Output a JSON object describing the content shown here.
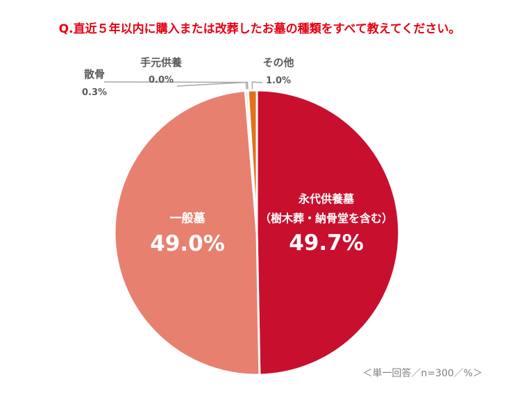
{
  "title": "Q.直近５年以内に購入または改葬したお墓の種類をすべて教えてください。",
  "note": "＜単一回答／n=300／%＞",
  "colors": {
    "title": "#e60012",
    "outer_label": "#595959",
    "inner_label": "#ffffff",
    "leader": "#a6a6a6",
    "note": "#7f7f7f"
  },
  "chart_data": {
    "type": "pie",
    "unit": "%",
    "n": 300,
    "slices": [
      {
        "name_lines": [
          "永代供養墓",
          "（樹木葬・納骨堂を含む）"
        ],
        "value": 49.7,
        "value_label": "49.7%",
        "color": "#c8102e",
        "label_position": "inside"
      },
      {
        "name_lines": [
          "一般墓"
        ],
        "value": 49.0,
        "value_label": "49.0%",
        "color": "#e88070",
        "label_position": "inside"
      },
      {
        "name_lines": [
          "散骨"
        ],
        "value": 0.3,
        "value_label": "0.3%",
        "color": "#c6c6c6",
        "label_position": "outside"
      },
      {
        "name_lines": [
          "手元供養"
        ],
        "value": 0.0,
        "value_label": "0.0%",
        "color": "#bfbfbf",
        "label_position": "outside"
      },
      {
        "name_lines": [
          "その他"
        ],
        "value": 1.0,
        "value_label": "1.0%",
        "color": "#e0731a",
        "label_position": "outside"
      }
    ]
  }
}
